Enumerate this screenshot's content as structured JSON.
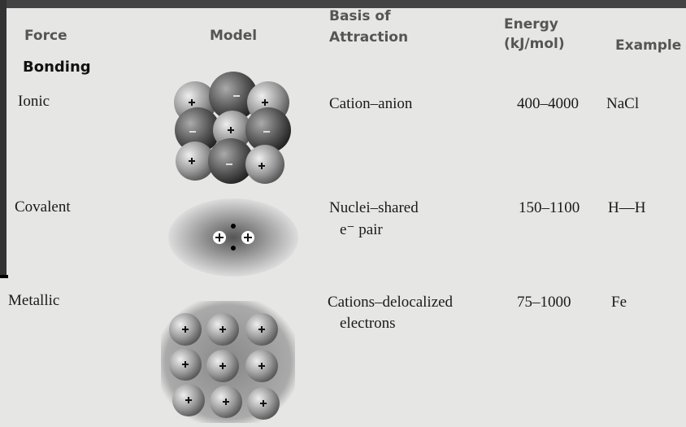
{
  "table": {
    "header": {
      "force": "Force",
      "model": "Model",
      "basis": [
        "Basis of",
        "Attraction"
      ],
      "energy": [
        "Energy",
        "(kJ/mol)"
      ],
      "example": "Example"
    },
    "section": "Bonding",
    "rows": [
      {
        "force": "Ionic",
        "basis": [
          "Cation–anion"
        ],
        "energy": "400–4000",
        "example": "NaCl"
      },
      {
        "force": "Covalent",
        "basis": [
          "Nuclei–shared",
          "e⁻ pair"
        ],
        "energy": "150–1100",
        "example": "H—H"
      },
      {
        "force": "Metallic",
        "basis": [
          "Cations–delocalized",
          "electrons"
        ],
        "energy": "75–1000",
        "example": "Fe"
      }
    ]
  }
}
